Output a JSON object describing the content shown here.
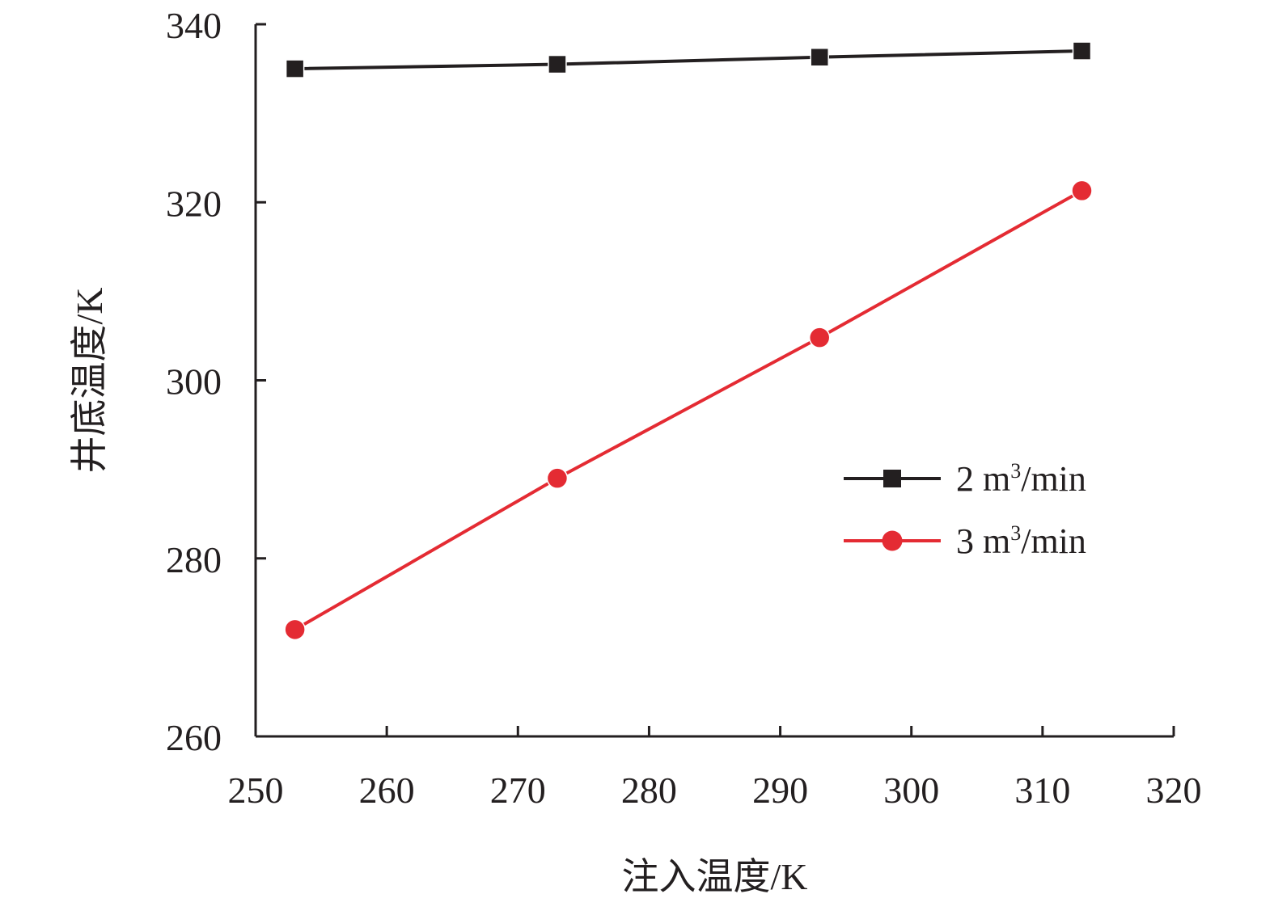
{
  "chart_data": {
    "type": "line",
    "title": "",
    "xlabel": "注入温度/K",
    "ylabel": "井底温度/K",
    "xlim": [
      250,
      320
    ],
    "ylim": [
      260,
      340
    ],
    "xticks": [
      "250",
      "260",
      "270",
      "280",
      "290",
      "300",
      "310",
      "320"
    ],
    "yticks": [
      "260",
      "280",
      "300",
      "320",
      "340"
    ],
    "x": [
      253,
      273,
      293,
      313
    ],
    "grid": false,
    "legend_position": "center-right",
    "series": [
      {
        "name_value": "2",
        "name_unit_base": "m",
        "name_unit_sup": "3",
        "name_unit_rest": "/min",
        "marker": "square",
        "color": "#231f20",
        "values": [
          335,
          335.5,
          336.3,
          337
        ]
      },
      {
        "name_value": "3",
        "name_unit_base": "m",
        "name_unit_sup": "3",
        "name_unit_rest": "/min",
        "marker": "circle",
        "color": "#e42b33",
        "values": [
          272,
          289,
          304.8,
          321.3
        ]
      }
    ]
  }
}
